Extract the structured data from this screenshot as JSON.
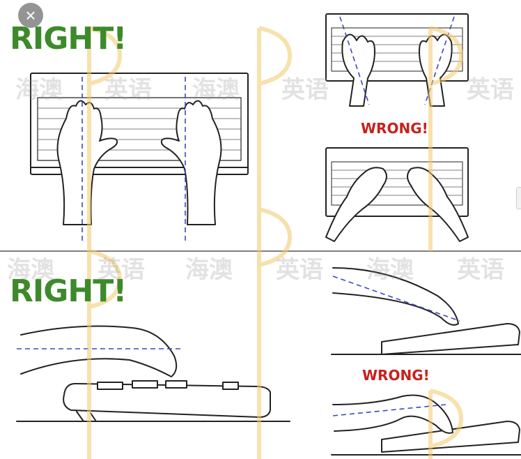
{
  "labels": {
    "right_top": "RIGHT!",
    "right_bottom": "RIGHT!",
    "wrong_top": "WRONG!",
    "wrong_bottom": "WRONG!"
  },
  "watermark": {
    "text_a": "海澳",
    "text_b": "英语",
    "color": "#9a9a9a",
    "logo_color": "#f3c86a"
  },
  "colors": {
    "right": "#3d8a2a",
    "wrong": "#c8201c",
    "line": "#222222",
    "guide": "#3b47c4"
  },
  "icons": {
    "close": "close-icon"
  }
}
